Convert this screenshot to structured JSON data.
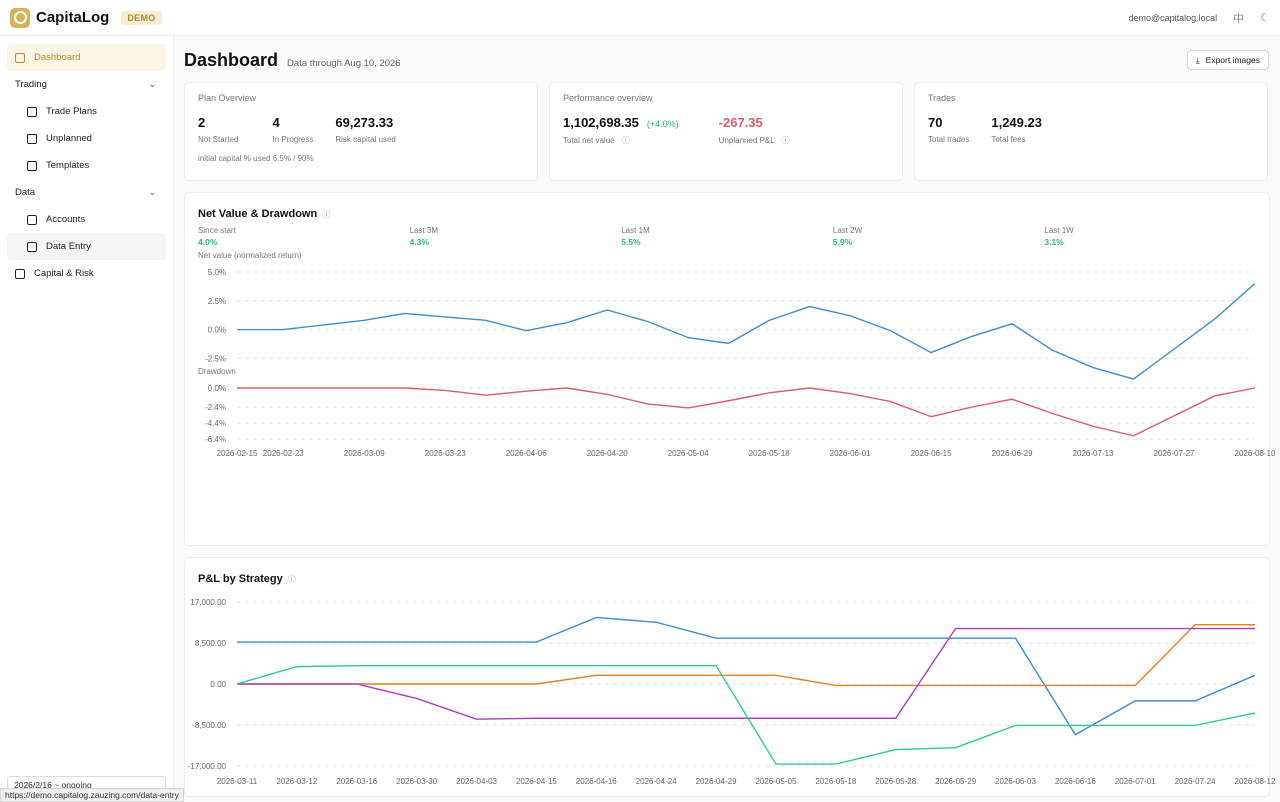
{
  "app": {
    "name": "CapitaLog",
    "badge": "DEMO",
    "user_email": "demo@capitalog.local",
    "lang_toggle": "中"
  },
  "sidebar": {
    "dashboard": "Dashboard",
    "trading_group": "Trading",
    "trade_plans": "Trade Plans",
    "unplanned": "Unplanned",
    "templates": "Templates",
    "data_group": "Data",
    "accounts": "Accounts",
    "data_entry": "Data Entry",
    "capital_risk": "Capital & Risk",
    "period_select": "2026/2/16 ~ ongoing"
  },
  "status_bar": {
    "url": "https://demo.capitalog.zauzing.com/data-entry"
  },
  "header": {
    "title": "Dashboard",
    "subtitle": "Data through Aug 10, 2026",
    "export_label": "Export images"
  },
  "plan_overview": {
    "title": "Plan Overview",
    "stats": [
      {
        "value": "2",
        "label": "Not Started"
      },
      {
        "value": "4",
        "label": "In Progress"
      },
      {
        "value": "69,273.33",
        "label": "Risk capital used"
      }
    ],
    "footnote": "initial capital % used 6.5% / 90%"
  },
  "performance": {
    "title": "Performance overview",
    "net_value": "1,102,698.35",
    "net_change": "(+4.0%)",
    "net_label": "Total net value",
    "unplanned_value": "-267.35",
    "unplanned_label": "Unplanned P&L"
  },
  "trades": {
    "title": "Trades",
    "stats": [
      {
        "value": "70",
        "label": "Total trades"
      },
      {
        "value": "1,249.23",
        "label": "Total fees"
      }
    ]
  },
  "net_value_panel": {
    "title": "Net Value & Drawdown",
    "periods": [
      {
        "label": "Since start",
        "value": "4.0%"
      },
      {
        "label": "Last 3M",
        "value": "4.3%"
      },
      {
        "label": "Last 1M",
        "value": "5.5%"
      },
      {
        "label": "Last 2W",
        "value": "5.9%"
      },
      {
        "label": "Last 1W",
        "value": "3.1%"
      }
    ]
  },
  "pnl_panel": {
    "title": "P&L by Strategy"
  },
  "colors": {
    "accent": "#d8b25a",
    "positive": "#2eb77a",
    "negative": "#e05a6b",
    "net_line": "#3a8fd0",
    "drawdown_line": "#e05a6b"
  },
  "chart_data": [
    {
      "type": "line",
      "ylabel": "Net value (normalized return)",
      "ylim": [
        -4.5,
        5.5
      ],
      "yticks": [
        "5.0%",
        "2.5%",
        "0.0%",
        "-2.5%"
      ],
      "ytick_values": [
        5.0,
        2.5,
        0.0,
        -2.5
      ],
      "xticks": [
        "2026-02-15",
        "2026-02-23",
        "2026-03-09",
        "2026-03-23",
        "2026-04-06",
        "2026-04-20",
        "2026-05-04",
        "2026-05-18",
        "2026-06-01",
        "2026-06-15",
        "2026-06-29",
        "2026-07-13",
        "2026-07-27",
        "2026-08-10"
      ],
      "series": [
        {
          "x": [
            "2026-02-15",
            "2026-02-23",
            "2026-03-02",
            "2026-03-09",
            "2026-03-16",
            "2026-03-23",
            "2026-03-30",
            "2026-04-06",
            "2026-04-13",
            "2026-04-20",
            "2026-04-27",
            "2026-05-04",
            "2026-05-11",
            "2026-05-18",
            "2026-05-25",
            "2026-06-01",
            "2026-06-08",
            "2026-06-15",
            "2026-06-22",
            "2026-06-29",
            "2026-07-06",
            "2026-07-13",
            "2026-07-20",
            "2026-08-03",
            "2026-08-10"
          ],
          "values": [
            0.0,
            0.0,
            0.4,
            0.8,
            1.4,
            1.1,
            0.8,
            -0.1,
            0.6,
            1.7,
            0.7,
            -0.7,
            -1.2,
            0.8,
            2.0,
            1.2,
            -0.1,
            -2.0,
            -0.6,
            0.5,
            -1.8,
            -3.3,
            -4.3,
            0.9,
            4.0
          ]
        }
      ]
    },
    {
      "type": "line",
      "ylabel": "Drawdown",
      "ylim": [
        -6.4,
        0.3
      ],
      "yticks": [
        "0.0%",
        "-2.4%",
        "-4.4%",
        "-6.4%"
      ],
      "ytick_values": [
        0.0,
        -2.4,
        -4.4,
        -6.4
      ],
      "series": [
        {
          "x": [
            "2026-02-15",
            "2026-02-23",
            "2026-03-02",
            "2026-03-09",
            "2026-03-16",
            "2026-03-23",
            "2026-03-30",
            "2026-04-06",
            "2026-04-13",
            "2026-04-20",
            "2026-04-27",
            "2026-05-04",
            "2026-05-11",
            "2026-05-18",
            "2026-05-25",
            "2026-06-01",
            "2026-06-08",
            "2026-06-15",
            "2026-06-22",
            "2026-06-29",
            "2026-07-06",
            "2026-07-13",
            "2026-07-20",
            "2026-08-03",
            "2026-08-10"
          ],
          "values": [
            0.0,
            0.0,
            0.0,
            0.0,
            0.0,
            -0.3,
            -0.9,
            -0.4,
            0.0,
            -0.8,
            -2.0,
            -2.5,
            -1.6,
            -0.6,
            0.0,
            -0.7,
            -1.7,
            -3.6,
            -2.4,
            -1.4,
            -3.2,
            -4.8,
            -6.0,
            -1.0,
            0.0
          ]
        }
      ]
    },
    {
      "type": "line",
      "title": "P&L by Strategy",
      "ylim": [
        -17000,
        17000
      ],
      "yticks": [
        "17,000.00",
        "8,500.00",
        "0.00",
        "-8,500.00",
        "-17,000.00"
      ],
      "ytick_values": [
        17000,
        8500,
        0,
        -8500,
        -17000
      ],
      "categories": [
        "2026-03-11",
        "2026-03-12",
        "2026-03-16",
        "2026-03-30",
        "2026-04-03",
        "2026-04-15",
        "2026-04-16",
        "2026-04-24",
        "2026-04-29",
        "2026-05-05",
        "2026-05-18",
        "2026-05-28",
        "2026-05-29",
        "2026-06-03",
        "2026-06-16",
        "2026-07-01",
        "2026-07-24",
        "2026-08-12"
      ],
      "series": [
        {
          "color": "#3a8fd0",
          "values": [
            8700,
            8700,
            8700,
            8700,
            8700,
            8700,
            13800,
            12800,
            9500,
            9500,
            9500,
            9500,
            9500,
            9500,
            -10500,
            -3500,
            -3500,
            1800
          ]
        },
        {
          "color": "#e67e22",
          "values": [
            0,
            0,
            0,
            0,
            0,
            0,
            1800,
            1800,
            1800,
            1800,
            -300,
            -300,
            -300,
            -300,
            -300,
            -300,
            12300,
            12300
          ]
        },
        {
          "color": "#b03ec2",
          "values": [
            0,
            0,
            0,
            -3000,
            -7300,
            -7100,
            -7100,
            -7100,
            -7100,
            -7100,
            -7100,
            -7100,
            11500,
            11500,
            11500,
            11500,
            11500,
            11500
          ]
        },
        {
          "color": "#2ecb94",
          "values": [
            0,
            3600,
            3800,
            3800,
            3800,
            3800,
            3800,
            3800,
            3800,
            -16600,
            -16600,
            -13600,
            -13200,
            -8600,
            -8600,
            -8600,
            -8600,
            -6000
          ]
        }
      ]
    }
  ]
}
